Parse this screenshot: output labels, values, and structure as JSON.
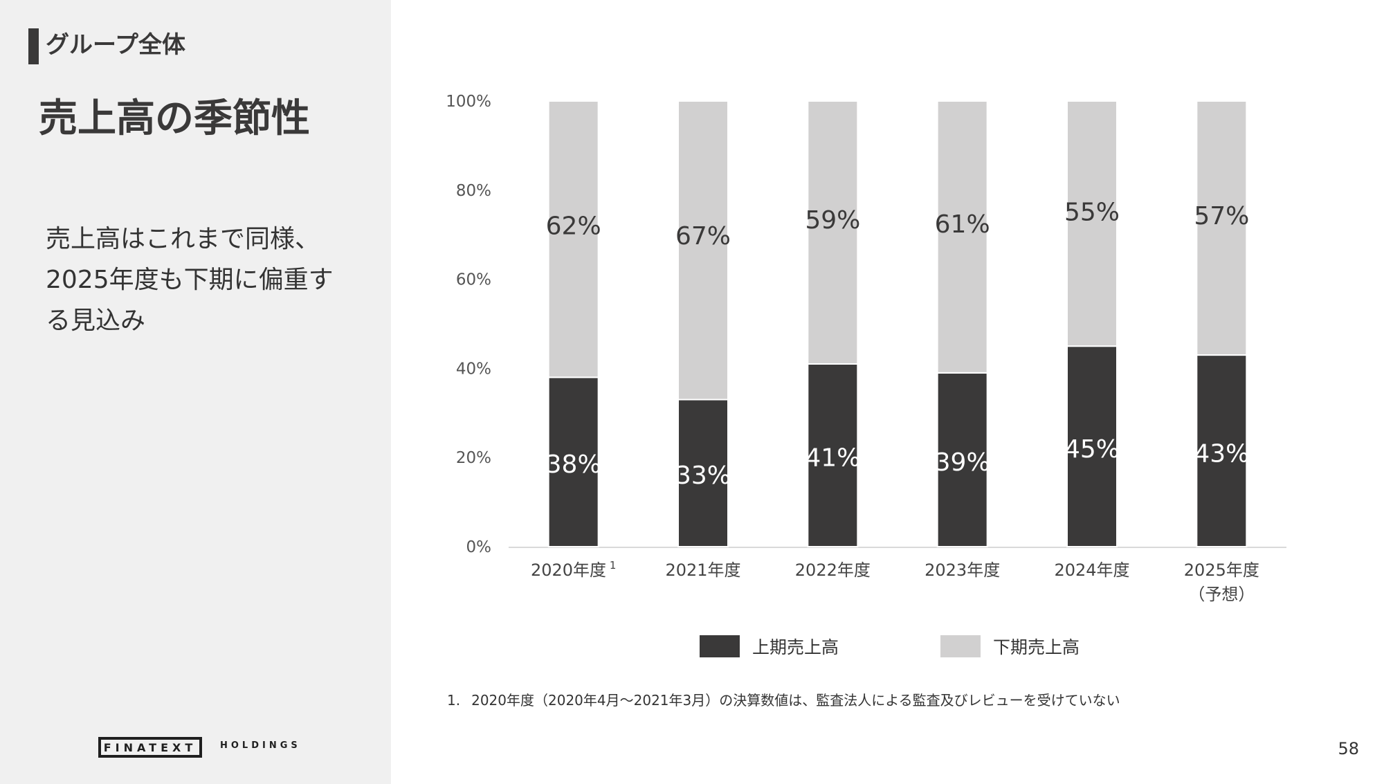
{
  "header": {
    "section_label": "グループ全体",
    "title": "売上高の季節性"
  },
  "description": "売上高はこれまで同様、2025年度も下期に偏重する見込み",
  "logo": {
    "main": "FINATEXT",
    "sub": "HOLDINGS"
  },
  "footnote": {
    "number": "1.",
    "text": "2020年度（2020年4月〜2021年3月）の決算数値は、監査法人による監査及びレビューを受けていない"
  },
  "page_number": "58",
  "colors": {
    "first_half": "#3a3939",
    "second_half": "#d1d0d0",
    "left_panel": "#f0f0f0"
  },
  "chart_data": {
    "type": "bar",
    "stacked": true,
    "categories": [
      "2020年度",
      "2021年度",
      "2022年度",
      "2023年度",
      "2024年度",
      "2025年度"
    ],
    "category_suffix": [
      "1",
      "",
      "",
      "",
      "",
      ""
    ],
    "category_sublabels": [
      "",
      "",
      "",
      "",
      "",
      "（予想）"
    ],
    "series": [
      {
        "name": "上期売上高",
        "values": [
          38,
          33,
          41,
          39,
          45,
          43
        ],
        "labels": [
          "38%",
          "33%",
          "41%",
          "39%",
          "45%",
          "43%"
        ],
        "color": "#3a3939"
      },
      {
        "name": "下期売上高",
        "values": [
          62,
          67,
          59,
          61,
          55,
          57
        ],
        "labels": [
          "62%",
          "67%",
          "59%",
          "61%",
          "55%",
          "57%"
        ],
        "color": "#d1d0d0"
      }
    ],
    "yticks": [
      "0%",
      "20%",
      "40%",
      "60%",
      "80%",
      "100%"
    ],
    "ylim": [
      0,
      100
    ],
    "grid": false,
    "legend_position": "bottom"
  }
}
